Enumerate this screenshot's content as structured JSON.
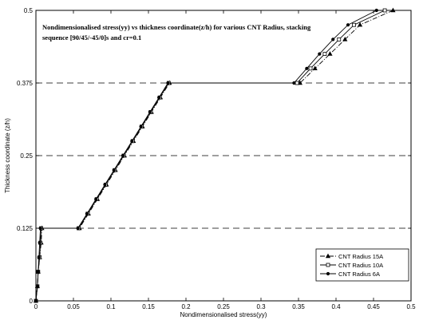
{
  "chart_data": {
    "type": "line",
    "title_lines": [
      "Nondimensionalised stress(yy) vs thickness coordinate(z/h) for various CNT Radius, stacking",
      "sequence [90/45/-45/0]s and cr=0.1"
    ],
    "xlabel": "Nondimensionalised stress(yy)",
    "ylabel": "Thickness coordinate (z/h)",
    "xlim": [
      0,
      0.5
    ],
    "ylim": [
      0,
      0.5
    ],
    "xticks": [
      0,
      0.05,
      0.1,
      0.15,
      0.2,
      0.25,
      0.3,
      0.35,
      0.4,
      0.45,
      0.5
    ],
    "xtick_labels": [
      "0",
      "0.05",
      "0.1",
      "0.15",
      "0.2",
      "0.25",
      "0.3",
      "0.35",
      "0.4",
      "0.45",
      "0.5"
    ],
    "yticks": [
      0,
      0.125,
      0.25,
      0.375,
      0.5
    ],
    "ytick_labels": [
      "0",
      "0.125",
      "0.25",
      "0.375",
      "0.5"
    ],
    "dashed_reference_lines_y": [
      0.125,
      0.25,
      0.375
    ],
    "grid": false,
    "legend_position": "bottom-right",
    "series": [
      {
        "name": "CNT Radius 15A",
        "marker": "triangle",
        "dash": "dashdot",
        "points": [
          [
            0.0,
            0.0
          ],
          [
            0.002,
            0.025
          ],
          [
            0.003,
            0.05
          ],
          [
            0.005,
            0.075
          ],
          [
            0.007,
            0.1
          ],
          [
            0.008,
            0.125
          ],
          [
            0.058,
            0.125
          ],
          [
            0.07,
            0.15
          ],
          [
            0.082,
            0.175
          ],
          [
            0.094,
            0.2
          ],
          [
            0.106,
            0.225
          ],
          [
            0.118,
            0.25
          ],
          [
            0.13,
            0.275
          ],
          [
            0.142,
            0.3
          ],
          [
            0.154,
            0.325
          ],
          [
            0.166,
            0.35
          ],
          [
            0.178,
            0.375
          ],
          [
            0.352,
            0.375
          ],
          [
            0.372,
            0.4
          ],
          [
            0.392,
            0.425
          ],
          [
            0.412,
            0.45
          ],
          [
            0.432,
            0.475
          ],
          [
            0.476,
            0.5
          ]
        ]
      },
      {
        "name": "CNT Radius 10A",
        "marker": "square",
        "dash": "solid",
        "points": [
          [
            0.0,
            0.0
          ],
          [
            0.002,
            0.025
          ],
          [
            0.003,
            0.05
          ],
          [
            0.005,
            0.075
          ],
          [
            0.006,
            0.1
          ],
          [
            0.007,
            0.125
          ],
          [
            0.057,
            0.125
          ],
          [
            0.069,
            0.15
          ],
          [
            0.081,
            0.175
          ],
          [
            0.093,
            0.2
          ],
          [
            0.105,
            0.225
          ],
          [
            0.117,
            0.25
          ],
          [
            0.129,
            0.275
          ],
          [
            0.141,
            0.3
          ],
          [
            0.153,
            0.325
          ],
          [
            0.165,
            0.35
          ],
          [
            0.177,
            0.375
          ],
          [
            0.348,
            0.375
          ],
          [
            0.366,
            0.4
          ],
          [
            0.385,
            0.425
          ],
          [
            0.404,
            0.45
          ],
          [
            0.424,
            0.475
          ],
          [
            0.465,
            0.5
          ]
        ]
      },
      {
        "name": "CNT Radius 6A",
        "marker": "circle",
        "dash": "solid",
        "points": [
          [
            0.0,
            0.0
          ],
          [
            0.002,
            0.025
          ],
          [
            0.003,
            0.05
          ],
          [
            0.004,
            0.075
          ],
          [
            0.005,
            0.1
          ],
          [
            0.006,
            0.125
          ],
          [
            0.056,
            0.125
          ],
          [
            0.068,
            0.15
          ],
          [
            0.08,
            0.175
          ],
          [
            0.092,
            0.2
          ],
          [
            0.104,
            0.225
          ],
          [
            0.116,
            0.25
          ],
          [
            0.128,
            0.275
          ],
          [
            0.14,
            0.3
          ],
          [
            0.152,
            0.325
          ],
          [
            0.164,
            0.35
          ],
          [
            0.176,
            0.375
          ],
          [
            0.344,
            0.375
          ],
          [
            0.361,
            0.4
          ],
          [
            0.378,
            0.425
          ],
          [
            0.396,
            0.45
          ],
          [
            0.416,
            0.475
          ],
          [
            0.454,
            0.5
          ]
        ]
      }
    ]
  }
}
